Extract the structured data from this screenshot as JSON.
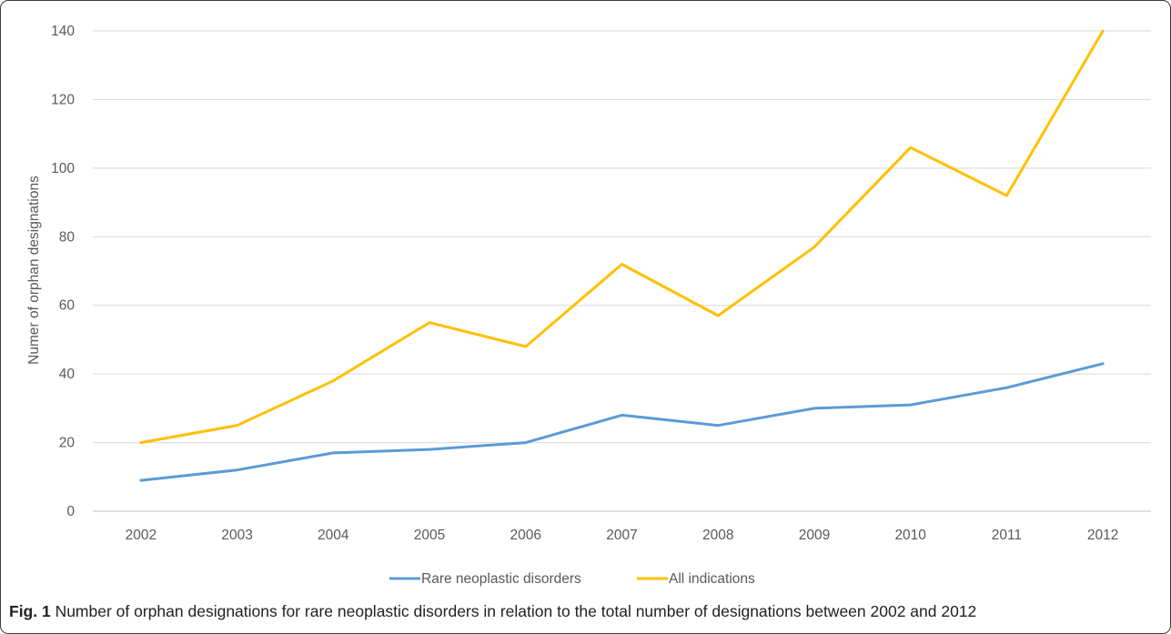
{
  "chart_data": {
    "type": "line",
    "x": [
      "2002",
      "2003",
      "2004",
      "2005",
      "2006",
      "2007",
      "2008",
      "2009",
      "2010",
      "2011",
      "2012"
    ],
    "series": [
      {
        "name": "Rare neoplastic disorders",
        "values": [
          9,
          12,
          17,
          18,
          20,
          28,
          25,
          30,
          31,
          36,
          43
        ],
        "color": "#5b9bd5"
      },
      {
        "name": "All indications",
        "values": [
          20,
          25,
          38,
          55,
          48,
          72,
          57,
          77,
          106,
          92,
          140
        ],
        "color": "#ffc000"
      }
    ],
    "ylabel": "Numer of orphan designations",
    "xlabel": "",
    "ylim": [
      0,
      140
    ],
    "yticks": [
      0,
      20,
      40,
      60,
      80,
      100,
      120,
      140
    ],
    "grid": true,
    "legend_position": "bottom"
  },
  "caption": {
    "label": "Fig. 1",
    "text": " Number of orphan designations for rare neoplastic disorders in relation to the total number of designations between 2002 and 2012"
  }
}
